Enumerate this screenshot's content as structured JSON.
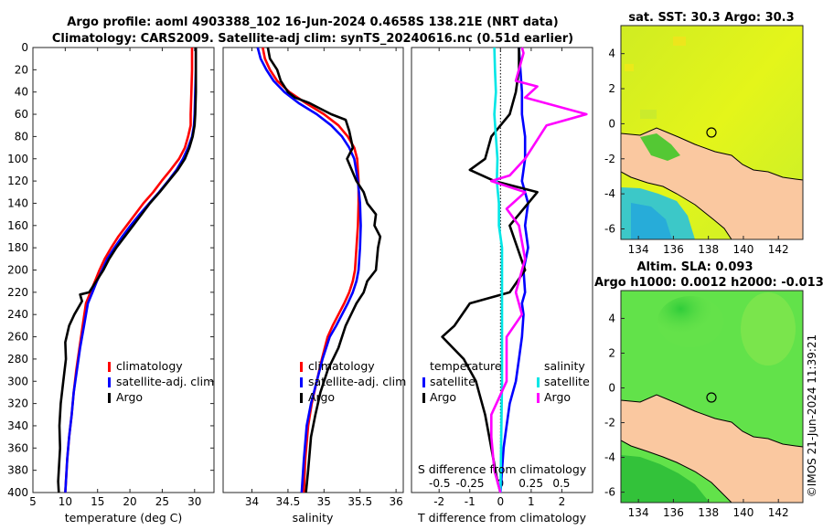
{
  "header": {
    "title_line1": "Argo profile: aoml 4903388_102 16-Jun-2024 0.4658S 138.21E (NRT data)",
    "title_line2": "Climatology: CARS2009. Satellite-adj clim: synTS_20240616.nc (0.51d earlier)"
  },
  "colors": {
    "climatology": "#ff0000",
    "satellite": "#0000ff",
    "argo": "#000000",
    "sal_satellite": "#00e6e6",
    "sal_argo": "#ff00ff",
    "land": "#fac8a0",
    "sst_field": "#d8f21e",
    "sla_field": "#60e045"
  },
  "depth_axis": {
    "ticks": [
      "0",
      "20",
      "40",
      "60",
      "80",
      "100",
      "120",
      "140",
      "160",
      "180",
      "200",
      "220",
      "240",
      "260",
      "280",
      "300",
      "320",
      "340",
      "360",
      "380",
      "400"
    ],
    "ylim": [
      0,
      400
    ]
  },
  "chart_data": [
    {
      "type": "line",
      "name": "temperature",
      "xlabel": "temperature (deg C)",
      "xlim": [
        5,
        33
      ],
      "xticks": [
        "5",
        "10",
        "15",
        "20",
        "25",
        "30"
      ],
      "ylim": [
        0,
        400
      ],
      "legend": [
        "climatology",
        "satellite-adj. clim",
        "Argo"
      ],
      "series": [
        {
          "name": "climatology",
          "color": "#ff0000",
          "x": [
            29.6,
            29.6,
            29.5,
            29.4,
            29.4,
            29.0,
            28.5,
            27.6,
            26.3,
            24.9,
            23.6,
            22.1,
            20.8,
            19.5,
            18.2,
            17.1,
            16.1,
            15.3,
            14.6,
            13.9,
            13.2,
            12.7,
            12.2,
            11.7,
            11.3,
            11.0,
            10.6,
            10.3,
            10.0
          ],
          "y": [
            0,
            20,
            40,
            60,
            70,
            80,
            90,
            100,
            110,
            120,
            130,
            140,
            150,
            160,
            170,
            180,
            190,
            200,
            210,
            220,
            230,
            250,
            270,
            290,
            310,
            330,
            350,
            370,
            400
          ]
        },
        {
          "name": "satellite-adj. clim",
          "color": "#0000ff",
          "x": [
            30.2,
            30.2,
            30.1,
            30.0,
            29.9,
            29.6,
            29.0,
            28.2,
            27.2,
            25.9,
            24.5,
            23.0,
            21.5,
            20.1,
            18.8,
            17.6,
            16.5,
            15.7,
            14.9,
            14.2,
            13.5,
            12.9,
            12.3,
            11.8,
            11.3,
            11.0,
            10.6,
            10.3,
            10.0
          ],
          "y": [
            0,
            20,
            40,
            60,
            70,
            80,
            90,
            100,
            110,
            120,
            130,
            140,
            150,
            160,
            170,
            180,
            190,
            200,
            210,
            220,
            230,
            250,
            270,
            290,
            310,
            330,
            350,
            370,
            400
          ]
        },
        {
          "name": "Argo",
          "color": "#000000",
          "x": [
            30.2,
            30.2,
            30.2,
            30.1,
            30.0,
            29.7,
            29.2,
            28.5,
            27.4,
            26.0,
            24.6,
            23.1,
            21.8,
            20.5,
            19.2,
            17.9,
            16.8,
            15.9,
            14.8,
            13.7,
            12.3,
            12.6,
            11.4,
            10.6,
            10.0,
            10.1,
            9.7,
            9.3,
            9.1,
            9.2,
            9.0,
            8.9,
            9.0
          ],
          "y": [
            0,
            20,
            40,
            60,
            70,
            80,
            90,
            100,
            110,
            120,
            130,
            140,
            150,
            160,
            170,
            180,
            190,
            200,
            210,
            220,
            222,
            228,
            240,
            250,
            265,
            280,
            300,
            320,
            340,
            360,
            380,
            390,
            400
          ]
        }
      ]
    },
    {
      "type": "line",
      "name": "salinity",
      "xlabel": "salinity",
      "xlim": [
        33.6,
        36.1
      ],
      "xticks": [
        "34",
        "34.5",
        "35",
        "35.5",
        "36"
      ],
      "ylim": [
        0,
        400
      ],
      "legend": [
        "climatology",
        "satellite-adj. clim",
        "Argo"
      ],
      "series": [
        {
          "name": "climatology",
          "color": "#ff0000",
          "x": [
            34.15,
            34.18,
            34.25,
            34.35,
            34.52,
            34.75,
            35.0,
            35.2,
            35.33,
            35.42,
            35.46,
            35.48,
            35.48,
            35.47,
            35.45,
            35.43,
            35.4,
            35.35,
            35.28,
            35.2,
            35.12,
            35.05,
            34.97,
            34.9,
            34.83,
            34.78,
            34.74,
            34.72
          ],
          "y": [
            0,
            10,
            20,
            30,
            40,
            50,
            60,
            70,
            80,
            90,
            100,
            120,
            140,
            160,
            180,
            200,
            210,
            220,
            230,
            240,
            250,
            260,
            280,
            300,
            320,
            340,
            370,
            400
          ]
        },
        {
          "name": "satellite-adj. clim",
          "color": "#0000ff",
          "x": [
            34.08,
            34.12,
            34.2,
            34.3,
            34.45,
            34.65,
            34.9,
            35.1,
            35.25,
            35.35,
            35.42,
            35.47,
            35.5,
            35.51,
            35.5,
            35.48,
            35.45,
            35.4,
            35.33,
            35.25,
            35.17,
            35.08,
            34.98,
            34.9,
            34.82,
            34.76,
            34.72,
            34.69
          ],
          "y": [
            0,
            10,
            20,
            30,
            40,
            50,
            60,
            70,
            80,
            90,
            100,
            120,
            140,
            160,
            180,
            200,
            210,
            220,
            230,
            240,
            250,
            260,
            280,
            300,
            320,
            340,
            370,
            400
          ]
        },
        {
          "name": "Argo",
          "color": "#000000",
          "x": [
            34.22,
            34.25,
            34.35,
            34.4,
            34.5,
            34.6,
            34.8,
            34.95,
            35.1,
            35.3,
            35.35,
            35.4,
            35.32,
            35.45,
            35.55,
            35.6,
            35.72,
            35.7,
            35.78,
            35.75,
            35.72,
            35.6,
            35.55,
            35.45,
            35.3,
            35.2,
            35.05,
            34.95,
            34.88,
            34.82,
            34.78,
            34.75
          ],
          "y": [
            0,
            10,
            20,
            30,
            40,
            45,
            50,
            55,
            60,
            65,
            75,
            90,
            100,
            120,
            130,
            140,
            150,
            160,
            170,
            180,
            200,
            210,
            220,
            230,
            250,
            270,
            290,
            310,
            330,
            350,
            380,
            400
          ]
        }
      ]
    },
    {
      "type": "line",
      "name": "difference",
      "xlabel": "T difference from climatology",
      "top_xlabel": "S difference from climatology",
      "xlim": [
        -2.9,
        3.0
      ],
      "xticks": [
        "-2",
        "-1",
        "0",
        "1",
        "2"
      ],
      "top_xticks": [
        "-0.5",
        "-0.25",
        "0",
        "0.25",
        "0.5"
      ],
      "ylim": [
        0,
        400
      ],
      "legend_temperature": [
        "temperature",
        "satellite",
        "Argo"
      ],
      "legend_salinity": [
        "salinity",
        "satellite",
        "Argo"
      ],
      "series": [
        {
          "name": "temperature satellite",
          "color": "#0000ff",
          "x": [
            0.6,
            0.65,
            0.7,
            0.7,
            0.8,
            0.8,
            0.7,
            0.9,
            0.8,
            0.9,
            0.75,
            0.8,
            0.7,
            0.75,
            0.7,
            0.6,
            0.5,
            0.3,
            0.2,
            0.1,
            0.05,
            0.0
          ],
          "y": [
            0,
            20,
            40,
            60,
            80,
            100,
            120,
            140,
            160,
            180,
            200,
            220,
            230,
            240,
            260,
            280,
            300,
            320,
            340,
            360,
            380,
            400
          ]
        },
        {
          "name": "temperature Argo",
          "color": "#000000",
          "x": [
            0.6,
            0.6,
            0.5,
            0.3,
            -0.3,
            -0.5,
            -1.0,
            -0.2,
            1.2,
            0.3,
            0.8,
            0.3,
            -1.0,
            -1.5,
            -1.9,
            -1.2,
            -0.8,
            -0.5,
            -0.3,
            -0.1,
            0.0
          ],
          "y": [
            0,
            20,
            40,
            60,
            80,
            100,
            110,
            120,
            130,
            160,
            200,
            220,
            230,
            250,
            260,
            280,
            300,
            330,
            360,
            390,
            400
          ]
        },
        {
          "name": "salinity satellite",
          "color": "#00e6e6",
          "x": [
            -0.2,
            -0.18,
            -0.15,
            -0.2,
            -0.15,
            -0.1,
            -0.12,
            -0.05,
            -0.05,
            0.05,
            0.05,
            0.05,
            0.05,
            0.0
          ],
          "y": [
            0,
            20,
            40,
            60,
            80,
            100,
            120,
            140,
            160,
            180,
            200,
            250,
            300,
            400
          ]
        },
        {
          "name": "salinity Argo",
          "color": "#ff00ff",
          "x": [
            0.7,
            0.75,
            0.5,
            1.2,
            0.8,
            2.8,
            1.5,
            0.8,
            0.3,
            -0.3,
            0.8,
            0.2,
            0.6,
            0.8,
            0.5,
            0.7,
            0.2,
            0.2,
            -0.3,
            -0.3,
            -0.2,
            0.0
          ],
          "y": [
            0,
            5,
            30,
            35,
            45,
            60,
            70,
            100,
            115,
            120,
            130,
            145,
            160,
            190,
            220,
            240,
            260,
            300,
            330,
            350,
            380,
            400
          ]
        }
      ]
    }
  ],
  "sst_map": {
    "title": "sat. SST: 30.3 Argo: 30.3",
    "xticks": [
      "134",
      "136",
      "138",
      "140",
      "142"
    ],
    "yticks": [
      "4",
      "2",
      "0",
      "-2",
      "-4",
      "-6"
    ]
  },
  "sla_map": {
    "title_line1": "Altim. SLA: 0.093",
    "title_line2": "Argo h1000: 0.0012 h2000: -0.013",
    "xticks": [
      "134",
      "136",
      "138",
      "140",
      "142"
    ],
    "yticks": [
      "4",
      "2",
      "0",
      "-2",
      "-4",
      "-6"
    ]
  },
  "footer": {
    "credit": "©IMOS 21-Jun-2024 11:39:21"
  }
}
